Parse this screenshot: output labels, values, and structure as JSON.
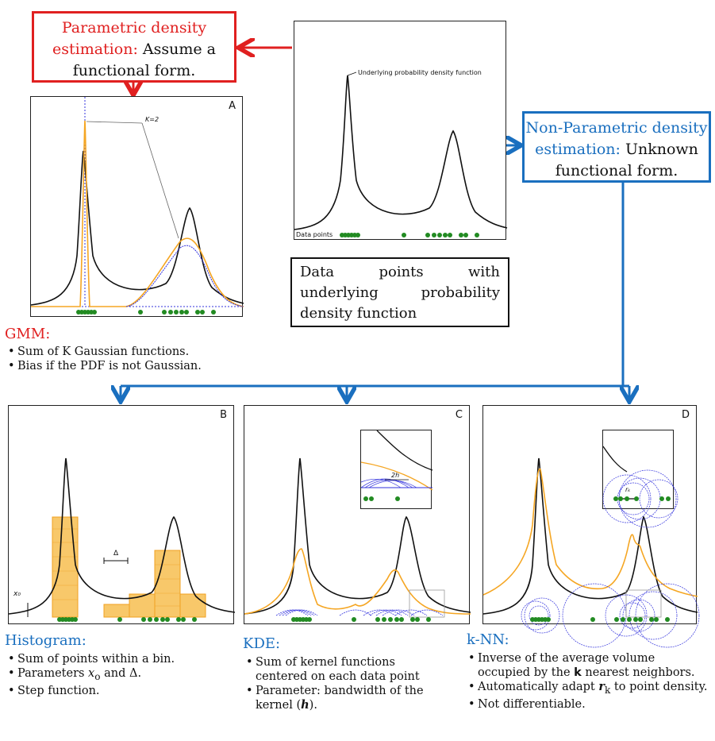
{
  "parametric": {
    "title_red": "Parametric density estimation:",
    "title_black": "Assume a functional form."
  },
  "nonparametric": {
    "title_blue": "Non-Parametric density estimation:",
    "title_black": "Unknown functional form."
  },
  "center": {
    "pdf_label": "Underlying probability density function",
    "points_label": "Data points",
    "caption": "Data points with underlying probability density function"
  },
  "panels": {
    "a": {
      "letter": "A",
      "k_label": "K=2"
    },
    "b": {
      "letter": "B",
      "delta_label": "Δ",
      "x0_label": "x₀"
    },
    "c": {
      "letter": "C",
      "h_label": "2h"
    },
    "d": {
      "letter": "D",
      "rk_label": "rₖ"
    }
  },
  "gmm": {
    "title": "GMM:",
    "bullets": [
      "Sum of K Gaussian functions.",
      "Bias if the PDF is not Gaussian."
    ]
  },
  "histogram": {
    "title": "Histogram:",
    "b1": "Sum of points within a bin.",
    "b2_pre": "Parameters ",
    "b2_x": "x",
    "b2_sub": "o",
    "b2_mid": " and ",
    "b2_delta": "Δ",
    "b2_end": ".",
    "b3": "Step function."
  },
  "kde": {
    "title": "KDE:",
    "b1": "Sum of kernel functions centered on each data point",
    "b2_pre": "Parameter: bandwidth of the kernel (",
    "b2_h": "h",
    "b2_end": ")."
  },
  "knn": {
    "title": "k-NN:",
    "b1_pre": "Inverse of the average volume occupied by the ",
    "b1_k": "k",
    "b1_end": " nearest neighbors.",
    "b2_pre": "Automatically adapt ",
    "b2_r": "r",
    "b2_sub": "k",
    "b2_end": " to point density.",
    "b3": "Not differentiable."
  },
  "colors": {
    "red": "#e02020",
    "blue": "#1a6fbf",
    "orange": "#f5a623",
    "green": "#228b22",
    "kernel": "#3333dd"
  }
}
